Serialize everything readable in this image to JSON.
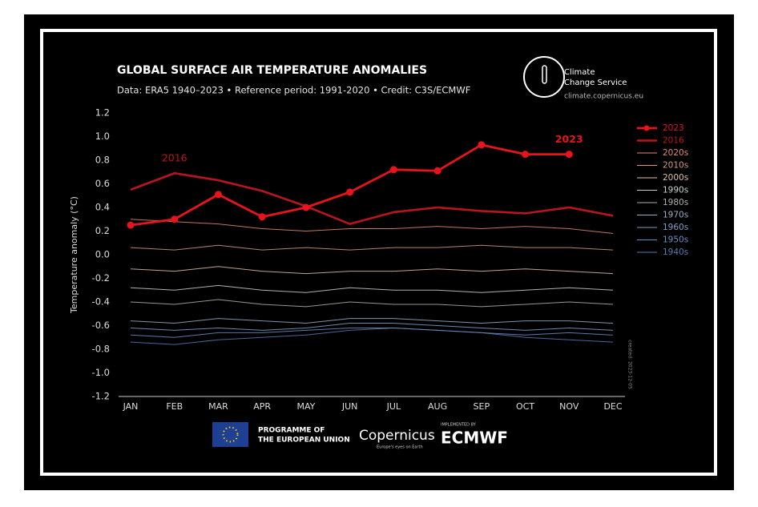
{
  "chart_data": {
    "type": "line",
    "title": "GLOBAL SURFACE AIR TEMPERATURE ANOMALIES",
    "subtitle": "Data: ERA5 1940–2023 • Reference period: 1991-2020 • Credit: C3S/ECMWF",
    "y_label": "Temperature anomaly (°C)",
    "categories": [
      "JAN",
      "FEB",
      "MAR",
      "APR",
      "MAY",
      "JUN",
      "JUL",
      "AUG",
      "SEP",
      "OCT",
      "NOV",
      "DEC"
    ],
    "ylim": [
      -1.2,
      1.2
    ],
    "yticks": [
      1.2,
      {
        "value": 1,
        "label": "1.0"
      },
      0.8,
      0.6,
      0.4,
      0.2,
      {
        "value": 0,
        "label": "0.0"
      },
      -0.2,
      -0.4,
      -0.6,
      -0.8,
      {
        "value": -1,
        "label": "-1.0"
      },
      -1.2
    ],
    "series": [
      {
        "name": "2023",
        "color": "#e8131b",
        "style": "markers",
        "values": [
          0.25,
          0.3,
          0.51,
          0.32,
          0.4,
          0.53,
          0.72,
          0.71,
          0.93,
          0.85,
          0.85,
          null
        ]
      },
      {
        "name": "2016",
        "color": "#b8161c",
        "style": "bold",
        "values": [
          0.55,
          0.69,
          0.63,
          0.54,
          0.41,
          0.26,
          0.36,
          0.4,
          0.37,
          0.35,
          0.4,
          0.33
        ]
      },
      {
        "name": "2020s",
        "color": "#e3896b",
        "style": "thin",
        "values": [
          0.3,
          0.28,
          0.26,
          0.22,
          0.2,
          0.22,
          0.22,
          0.24,
          0.22,
          0.24,
          0.22,
          0.18
        ]
      },
      {
        "name": "2010s",
        "color": "#d49a7e",
        "style": "thin",
        "values": [
          0.06,
          0.04,
          0.08,
          0.04,
          0.06,
          0.04,
          0.06,
          0.06,
          0.08,
          0.06,
          0.06,
          0.04
        ]
      },
      {
        "name": "2000s",
        "color": "#e2c0a4",
        "style": "thin",
        "values": [
          -0.12,
          -0.14,
          -0.1,
          -0.14,
          -0.16,
          -0.14,
          -0.14,
          -0.12,
          -0.14,
          -0.12,
          -0.14,
          -0.16
        ]
      },
      {
        "name": "1990s",
        "color": "#cfcfcf",
        "style": "thin",
        "values": [
          -0.28,
          -0.3,
          -0.26,
          -0.3,
          -0.32,
          -0.28,
          -0.3,
          -0.3,
          -0.32,
          -0.3,
          -0.28,
          -0.3
        ]
      },
      {
        "name": "1980s",
        "color": "#b0b0b0",
        "style": "thin",
        "values": [
          -0.4,
          -0.42,
          -0.38,
          -0.42,
          -0.44,
          -0.4,
          -0.42,
          -0.42,
          -0.44,
          -0.42,
          -0.4,
          -0.42
        ]
      },
      {
        "name": "1970s",
        "color": "#98aec4",
        "style": "thin",
        "values": [
          -0.56,
          -0.58,
          -0.54,
          -0.56,
          -0.58,
          -0.54,
          -0.54,
          -0.56,
          -0.58,
          -0.56,
          -0.56,
          -0.58
        ]
      },
      {
        "name": "1960s",
        "color": "#7fa0c8",
        "style": "thin",
        "values": [
          -0.62,
          -0.64,
          -0.62,
          -0.64,
          -0.62,
          -0.58,
          -0.58,
          -0.6,
          -0.62,
          -0.64,
          -0.62,
          -0.64
        ]
      },
      {
        "name": "1950s",
        "color": "#6a8fc4",
        "style": "thin",
        "values": [
          -0.68,
          -0.7,
          -0.66,
          -0.66,
          -0.64,
          -0.62,
          -0.62,
          -0.64,
          -0.66,
          -0.68,
          -0.66,
          -0.68
        ]
      },
      {
        "name": "1940s",
        "color": "#5678b4",
        "style": "thin",
        "values": [
          -0.74,
          -0.76,
          -0.72,
          -0.7,
          -0.68,
          -0.64,
          -0.62,
          -0.64,
          -0.66,
          -0.7,
          -0.72,
          -0.74
        ]
      }
    ],
    "annotations": [
      {
        "text": "2016",
        "series": 1,
        "index": 1
      },
      {
        "text": "2023",
        "series": 0,
        "index": 10
      }
    ],
    "created_note": "created: 2023-12-05",
    "brand": {
      "service": [
        "Climate",
        "Change Service"
      ],
      "url": "climate.copernicus.eu"
    },
    "footer": {
      "eu": [
        "PROGRAMME OF",
        "THE EUROPEAN UNION"
      ],
      "copernicus": "Copernicus",
      "copernicus_tagline": "Europe's eyes on Earth",
      "implemented": "IMPLEMENTED BY",
      "ecmwf": "ECMWF"
    }
  }
}
